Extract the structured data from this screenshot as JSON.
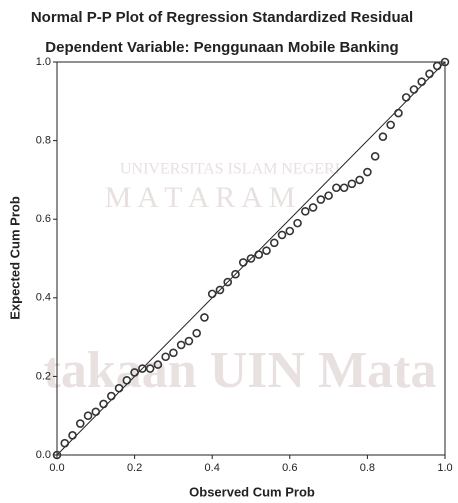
{
  "chart_data": {
    "type": "scatter",
    "title": "Normal P-P Plot of Regression Standardized Residual",
    "subtitle": "Dependent Variable: Penggunaan Mobile Banking",
    "x_label": "Observed Cum Prob",
    "y_label": "Expected Cum Prob",
    "watermark": [
      "UNIVERSITAS ISLAM NEGERI",
      "M A T A R A M",
      "takaan UIN Mata"
    ],
    "color": "#333333",
    "xlim": [
      0,
      1
    ],
    "ylim": [
      0,
      1
    ],
    "xticks": [
      {
        "value": 0,
        "label": "0.0"
      },
      0.2,
      0.4,
      0.6,
      0.8,
      {
        "value": 1,
        "label": "1.0"
      }
    ],
    "yticks": [
      {
        "value": 0,
        "label": "0.0"
      },
      0.2,
      0.4,
      0.6,
      0.8,
      {
        "value": 1,
        "label": "1.0"
      }
    ],
    "x": [
      0,
      0.02,
      0.04,
      0.06,
      0.08,
      0.1,
      0.12,
      0.14,
      0.16,
      0.18,
      0.2,
      0.22,
      0.24,
      0.26,
      0.28,
      0.3,
      0.32,
      0.34,
      0.36,
      0.38,
      0.4,
      0.42,
      0.44,
      0.46,
      0.48,
      0.5,
      0.52,
      0.54,
      0.56,
      0.58,
      0.6,
      0.62,
      0.64,
      0.66,
      0.68,
      0.7,
      0.72,
      0.74,
      0.76,
      0.78,
      0.8,
      0.82,
      0.84,
      0.86,
      0.88,
      0.9,
      0.92,
      0.94,
      0.96,
      0.98,
      1
    ],
    "values": [
      0,
      0.03,
      0.05,
      0.08,
      0.1,
      0.11,
      0.13,
      0.15,
      0.17,
      0.19,
      0.21,
      0.22,
      0.22,
      0.23,
      0.25,
      0.26,
      0.28,
      0.29,
      0.31,
      0.35,
      0.41,
      0.42,
      0.44,
      0.46,
      0.49,
      0.5,
      0.51,
      0.52,
      0.54,
      0.56,
      0.57,
      0.59,
      0.62,
      0.63,
      0.65,
      0.66,
      0.68,
      0.68,
      0.69,
      0.7,
      0.72,
      0.76,
      0.81,
      0.84,
      0.87,
      0.91,
      0.93,
      0.95,
      0.97,
      0.99,
      1
    ]
  }
}
